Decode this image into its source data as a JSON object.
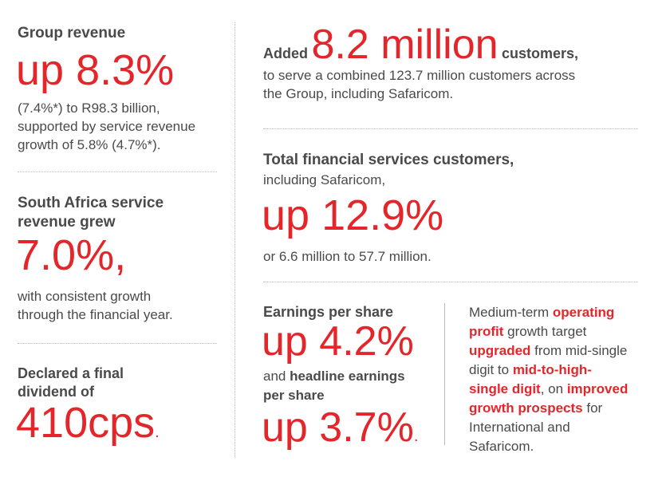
{
  "left": {
    "revenue": {
      "heading": "Group revenue",
      "figure": "up 8.3%",
      "detail": [
        "(7.4%*) to R98.3 billion,",
        "supported by service revenue",
        "growth of 5.8% (4.7%*)."
      ]
    },
    "south_africa": {
      "heading": [
        "South Africa service",
        "revenue grew"
      ],
      "figure": "7.0%,",
      "detail": [
        "with consistent growth",
        "through the financial year."
      ]
    },
    "dividend": {
      "heading": [
        "Declared a final",
        "dividend of"
      ],
      "figure": "410cps",
      "dot": "."
    }
  },
  "right": {
    "customers": {
      "prefix": "Added",
      "figure": "8.2 million",
      "suffix": "customers,",
      "detail": [
        "to serve a combined 123.7 million customers across",
        "the Group, including Safaricom."
      ]
    },
    "financial": {
      "heading": "Total financial services customers,",
      "sub": "including Safaricom,",
      "figure": "up 12.9%",
      "detail": "or 6.6 million to 57.7 million."
    },
    "eps": {
      "heading": "Earnings per share",
      "figure1": "up 4.2%",
      "mid_plain": "and ",
      "mid_bold": "headline earnings",
      "mid_bold2": "per share",
      "figure2": "up 3.7%",
      "dot": "."
    },
    "guidance": {
      "t1": "Medium-term ",
      "r1": "operating",
      "r2": "profit",
      "t2": " growth target",
      "r3": "upgraded",
      "t3": " from mid-single",
      "t4": "digit to ",
      "r4": "mid-to-high-",
      "r5": "single digit",
      "t5": ", on ",
      "r6": "improved",
      "r7": "growth prospects",
      "t6": " for",
      "t7": "International and",
      "t8": "Safaricom."
    }
  },
  "colors": {
    "accent": "#e4262b",
    "text": "#4a4a4a",
    "divider": "#bcbcbc"
  }
}
